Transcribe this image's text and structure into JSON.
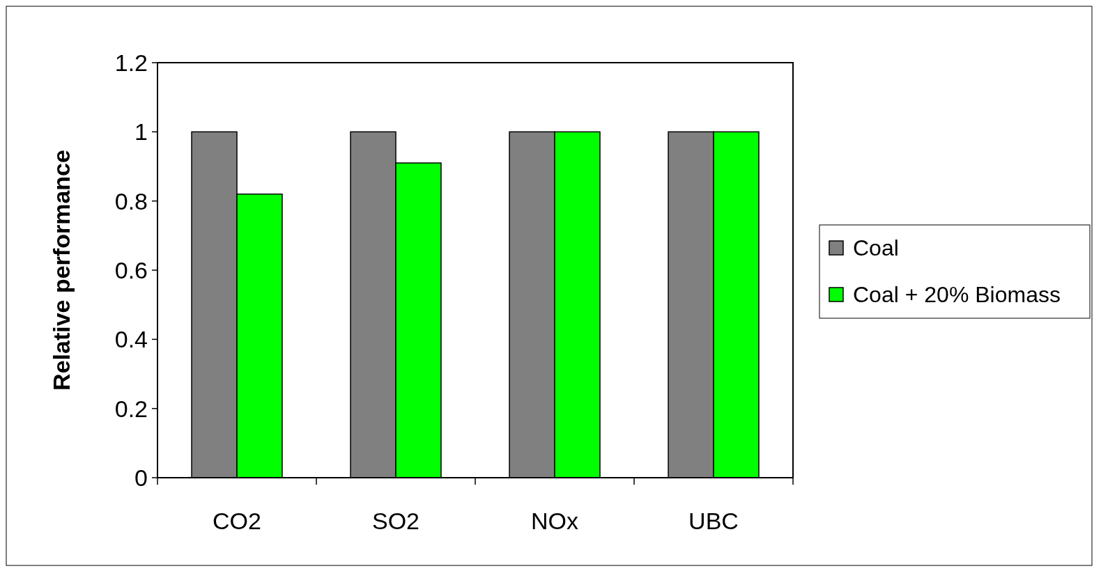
{
  "chart_data": {
    "type": "bar",
    "ylabel": "Relative performance",
    "categories": [
      "CO2",
      "SO2",
      "NOx",
      "UBC"
    ],
    "series": [
      {
        "name": "Coal",
        "color": "#808080",
        "values": [
          1,
          1,
          1,
          1
        ]
      },
      {
        "name": "Coal + 20% Biomass",
        "color": "#00ff00",
        "values": [
          0.82,
          0.91,
          1,
          1
        ]
      }
    ],
    "ylim": [
      0,
      1.2
    ],
    "yticks": [
      0,
      0.2,
      0.4,
      0.6,
      0.8,
      1,
      1.2
    ],
    "grid": false,
    "legend": "right"
  }
}
